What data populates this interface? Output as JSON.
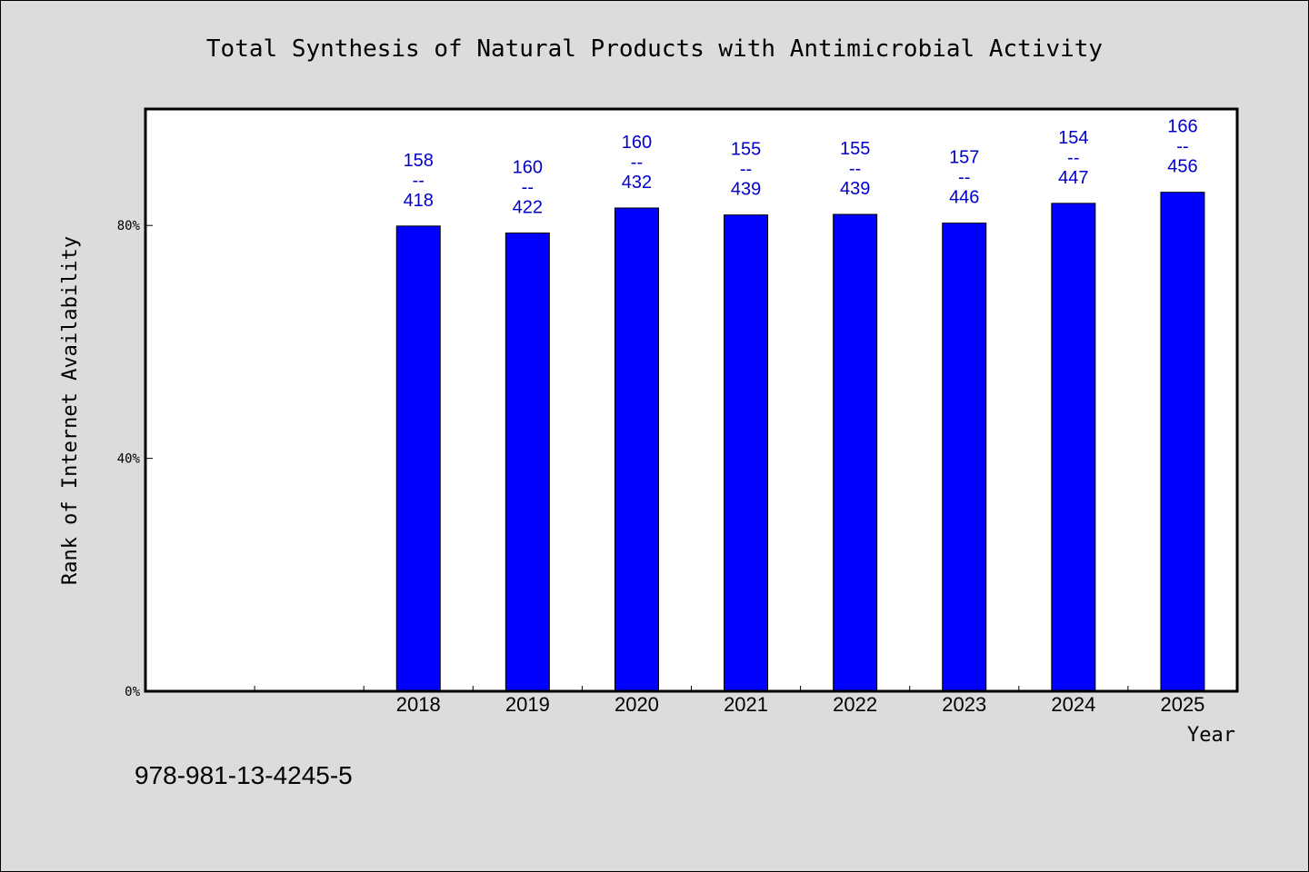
{
  "chart_data": {
    "type": "bar",
    "title": "Total Synthesis of Natural Products with Antimicrobial Activity",
    "xlabel": "Year",
    "ylabel": "Rank of Internet Availability",
    "categories": [
      "",
      "",
      "2018",
      "2019",
      "2020",
      "2021",
      "2022",
      "2023",
      "2024",
      "2025"
    ],
    "values": [
      null,
      null,
      79.9,
      78.7,
      83.0,
      81.8,
      81.9,
      80.4,
      83.8,
      85.7
    ],
    "bar_labels": [
      null,
      null,
      [
        "158",
        "--",
        "418"
      ],
      [
        "160",
        "--",
        "422"
      ],
      [
        "160",
        "--",
        "432"
      ],
      [
        "155",
        "--",
        "439"
      ],
      [
        "155",
        "--",
        "439"
      ],
      [
        "157",
        "--",
        "446"
      ],
      [
        "154",
        "--",
        "447"
      ],
      [
        "166",
        "--",
        "456"
      ]
    ],
    "ylim": [
      0,
      100
    ],
    "yticks": [
      0,
      40,
      80
    ],
    "ytick_labels": [
      "0%",
      "40%",
      "80%"
    ],
    "grid": false,
    "colors": {
      "bar": "#0000ff",
      "label": "#0000cc",
      "background": "#dcdcdc",
      "plot": "#ffffff"
    }
  },
  "footer": {
    "isbn": "978-981-13-4245-5"
  }
}
